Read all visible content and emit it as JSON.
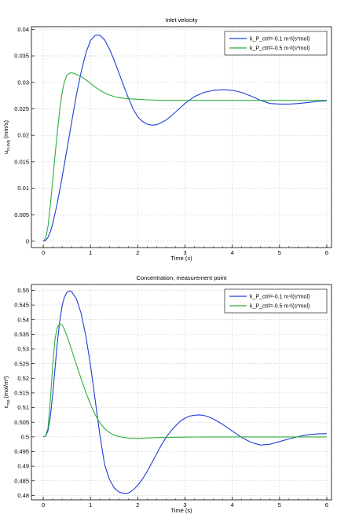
{
  "chart_data": [
    {
      "type": "line",
      "title": "Inlet velocity",
      "xlabel": "Time (s)",
      "ylabel_main": "u",
      "ylabel_sub": "in,avg",
      "ylabel_unit": " (mm/s)",
      "xlim": [
        -0.25,
        6.1
      ],
      "ylim": [
        -0.0012,
        0.0405
      ],
      "xticks": [
        "0",
        "1",
        "2",
        "3",
        "4",
        "5",
        "6"
      ],
      "yticks": [
        "0",
        "0.005",
        "0.01",
        "0.015",
        "0.02",
        "0.025",
        "0.03",
        "0.035",
        "0.04"
      ],
      "grid": true,
      "legend_position": "top-right",
      "series": [
        {
          "name": "k_P_ctrl=-0.1 m⁴/(s*mol)",
          "color": "#1f3fd6",
          "x": [
            0,
            0.05,
            0.1,
            0.15,
            0.2,
            0.3,
            0.4,
            0.5,
            0.6,
            0.7,
            0.8,
            0.9,
            1.0,
            1.1,
            1.2,
            1.3,
            1.4,
            1.5,
            1.6,
            1.7,
            1.8,
            1.9,
            2.0,
            2.1,
            2.2,
            2.3,
            2.4,
            2.5,
            2.6,
            2.7,
            2.8,
            2.9,
            3.0,
            3.2,
            3.4,
            3.6,
            3.8,
            4.0,
            4.2,
            4.4,
            4.6,
            4.8,
            5.0,
            5.2,
            5.4,
            5.6,
            5.8,
            6.0
          ],
          "values": [
            0,
            0.0001,
            0.0007,
            0.0018,
            0.0033,
            0.0073,
            0.0121,
            0.0172,
            0.0224,
            0.0275,
            0.0319,
            0.0355,
            0.0379,
            0.0389,
            0.0389,
            0.038,
            0.0363,
            0.0342,
            0.0318,
            0.0294,
            0.0271,
            0.025,
            0.0235,
            0.0226,
            0.0221,
            0.0219,
            0.022,
            0.0224,
            0.0229,
            0.0236,
            0.0244,
            0.0252,
            0.026,
            0.0273,
            0.0281,
            0.0285,
            0.0286,
            0.0285,
            0.0281,
            0.0274,
            0.0266,
            0.026,
            0.0259,
            0.0259,
            0.026,
            0.0262,
            0.0264,
            0.0265
          ]
        },
        {
          "name": "k_P_ctrl=-0.5 m⁴/(s*mol)",
          "color": "#2eae3f",
          "x": [
            0,
            0.05,
            0.1,
            0.15,
            0.2,
            0.25,
            0.3,
            0.35,
            0.4,
            0.45,
            0.5,
            0.55,
            0.6,
            0.65,
            0.7,
            0.8,
            0.9,
            1.0,
            1.1,
            1.2,
            1.3,
            1.4,
            1.5,
            1.6,
            1.8,
            2.0,
            2.2,
            2.5,
            3.0,
            3.5,
            4.0,
            4.5,
            5.0,
            5.5,
            6.0
          ],
          "values": [
            0,
            0.0005,
            0.0028,
            0.0068,
            0.0115,
            0.0163,
            0.0208,
            0.0249,
            0.0281,
            0.0302,
            0.0313,
            0.0317,
            0.0318,
            0.0317,
            0.0315,
            0.0311,
            0.0305,
            0.0298,
            0.0291,
            0.0285,
            0.028,
            0.0276,
            0.0273,
            0.0271,
            0.0269,
            0.0268,
            0.0267,
            0.0266,
            0.0266,
            0.0266,
            0.0266,
            0.0266,
            0.0266,
            0.0266,
            0.0266
          ]
        }
      ]
    },
    {
      "type": "line",
      "title": "Concentration, measurement point",
      "xlabel": "Time (s)",
      "ylabel_main": "c",
      "ylabel_sub": "mp",
      "ylabel_unit": " (mol/m³)",
      "xlim": [
        -0.25,
        6.1
      ],
      "ylim": [
        0.4785,
        0.552
      ],
      "xticks": [
        "0",
        "1",
        "2",
        "3",
        "4",
        "5",
        "6"
      ],
      "yticks": [
        "0.48",
        "0.485",
        "0.49",
        "0.495",
        "0.5",
        "0.505",
        "0.51",
        "0.515",
        "0.52",
        "0.525",
        "0.53",
        "0.535",
        "0.54",
        "0.545",
        "0.55"
      ],
      "grid": true,
      "legend_position": "top-right",
      "series": [
        {
          "name": "k_P_ctrl=-0.1 m⁴/(s*mol)",
          "color": "#1f3fd6",
          "x": [
            0,
            0.05,
            0.1,
            0.15,
            0.2,
            0.25,
            0.3,
            0.35,
            0.4,
            0.45,
            0.5,
            0.55,
            0.6,
            0.7,
            0.8,
            0.9,
            1.0,
            1.1,
            1.2,
            1.3,
            1.4,
            1.5,
            1.6,
            1.7,
            1.8,
            1.9,
            2.0,
            2.1,
            2.2,
            2.3,
            2.4,
            2.5,
            2.6,
            2.7,
            2.8,
            2.9,
            3.0,
            3.1,
            3.2,
            3.3,
            3.4,
            3.5,
            3.6,
            3.7,
            3.8,
            3.9,
            4.0,
            4.2,
            4.4,
            4.6,
            4.8,
            5.0,
            5.2,
            5.4,
            5.6,
            5.8,
            6.0
          ],
          "values": [
            0.5,
            0.5002,
            0.5021,
            0.507,
            0.5145,
            0.5235,
            0.5325,
            0.5395,
            0.5448,
            0.5478,
            0.5493,
            0.5498,
            0.5496,
            0.5472,
            0.5422,
            0.5345,
            0.5245,
            0.5125,
            0.5005,
            0.4905,
            0.4855,
            0.4826,
            0.4812,
            0.4807,
            0.4808,
            0.4818,
            0.4835,
            0.4856,
            0.4882,
            0.4912,
            0.4942,
            0.4972,
            0.4998,
            0.502,
            0.5038,
            0.5053,
            0.5064,
            0.5071,
            0.5074,
            0.5075,
            0.5073,
            0.5068,
            0.5061,
            0.5052,
            0.5042,
            0.5031,
            0.502,
            0.4998,
            0.4981,
            0.4972,
            0.4975,
            0.4984,
            0.4993,
            0.5001,
            0.5007,
            0.501,
            0.5011
          ]
        },
        {
          "name": "k_P_ctrl=-0.5 m⁴/(s*mol)",
          "color": "#2eae3f",
          "x": [
            0,
            0.05,
            0.1,
            0.15,
            0.2,
            0.25,
            0.3,
            0.35,
            0.4,
            0.45,
            0.5,
            0.55,
            0.6,
            0.7,
            0.8,
            0.9,
            1.0,
            1.1,
            1.2,
            1.3,
            1.4,
            1.5,
            1.6,
            1.8,
            2.0,
            2.2,
            2.5,
            3.0,
            3.5,
            4.0,
            4.5,
            5.0,
            5.5,
            6.0
          ],
          "values": [
            0.5,
            0.5003,
            0.503,
            0.5125,
            0.5245,
            0.5335,
            0.5375,
            0.5386,
            0.5382,
            0.5366,
            0.5345,
            0.5322,
            0.5297,
            0.5248,
            0.5199,
            0.5153,
            0.5111,
            0.5075,
            0.5048,
            0.5028,
            0.5015,
            0.5006,
            0.5001,
            0.4996,
            0.4995,
            0.4996,
            0.4998,
            0.4999,
            0.5,
            0.5,
            0.5,
            0.5,
            0.5,
            0.5
          ]
        }
      ]
    }
  ]
}
